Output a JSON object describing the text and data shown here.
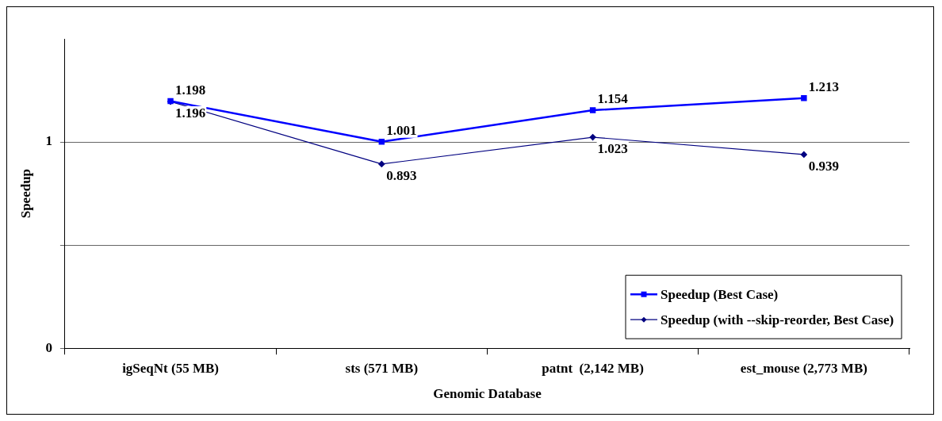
{
  "chart_data": {
    "type": "line",
    "xlabel": "Genomic Database",
    "ylabel": "Speedup",
    "categories": [
      "igSeqNt (55 MB)",
      "sts (571 MB)",
      "patnt  (2,142 MB)",
      "est_mouse (2,773 MB)"
    ],
    "series": [
      {
        "name": "Speedup (Best Case)",
        "color": "#0000ff",
        "marker": "square",
        "values": [
          1.198,
          1.001,
          1.154,
          1.213
        ]
      },
      {
        "name": "Speedup (with --skip-reorder, Best Case)",
        "color": "#000080",
        "marker": "diamond",
        "values": [
          1.196,
          0.893,
          1.023,
          0.939
        ]
      }
    ],
    "ylim": [
      0,
      1.5
    ],
    "yticks": [
      0,
      {
        "value": 0.5,
        "label": null
      },
      1
    ],
    "grid": "y",
    "legend": "bottom right",
    "data_labels": true
  }
}
